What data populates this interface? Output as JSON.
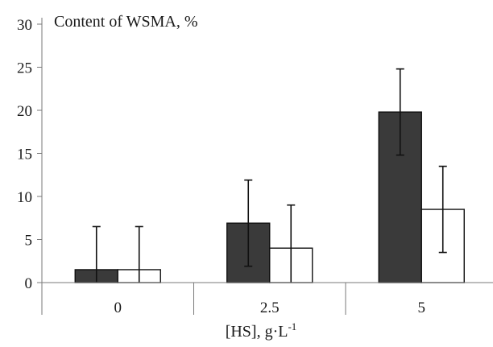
{
  "chart_data": {
    "type": "bar",
    "title": "Content of WSMA, %",
    "xlabel_main": "[HS], g·L",
    "xlabel_sup": "-1",
    "ylabel": "",
    "categories": [
      "0",
      "2.5",
      "5"
    ],
    "ylim": [
      0,
      30
    ],
    "yticks": [
      0,
      5,
      10,
      15,
      20,
      25,
      30
    ],
    "grid": false,
    "legend": "none",
    "series": [
      {
        "values": [
          1.5,
          6.9,
          19.8
        ],
        "error": [
          5.0,
          5.0,
          5.0
        ],
        "color": "#3a3a3a"
      },
      {
        "values": [
          1.5,
          4.0,
          8.5
        ],
        "error": [
          5.0,
          5.0,
          5.0
        ],
        "color": "#ffffff"
      }
    ]
  }
}
